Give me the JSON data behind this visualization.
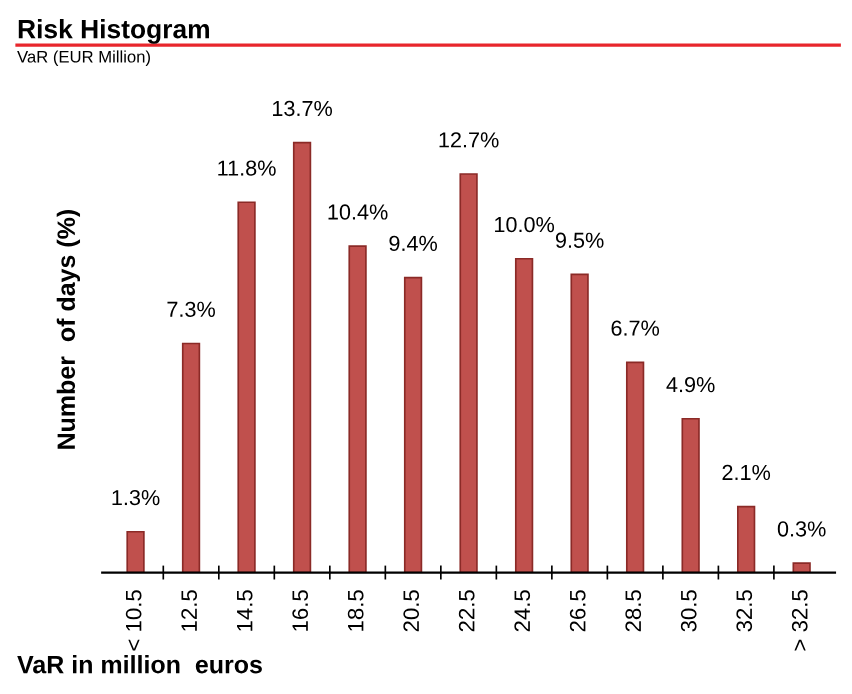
{
  "chart_data": {
    "type": "bar",
    "title": "Risk Histogram",
    "subtitle": "VaR (EUR Million)",
    "xlabel": "VaR in million  euros",
    "ylabel": "Number  of days (%)",
    "categories": [
      "< 10.5",
      "12.5",
      "14.5",
      "16.5",
      "18.5",
      "20.5",
      "22.5",
      "24.5",
      "26.5",
      "28.5",
      "30.5",
      "32.5",
      "> 32.5"
    ],
    "values": [
      1.3,
      7.3,
      11.8,
      13.7,
      10.4,
      9.4,
      12.7,
      10.0,
      9.5,
      6.7,
      4.9,
      2.1,
      0.3
    ],
    "value_labels": [
      "1.3%",
      "7.3%",
      "11.8%",
      "13.7%",
      "10.4%",
      "9.4%",
      "12.7%",
      "10.0%",
      "9.5%",
      "6.7%",
      "4.9%",
      "2.1%",
      "0.3%"
    ],
    "color": "#c0504d",
    "grid": false,
    "legend": false
  }
}
